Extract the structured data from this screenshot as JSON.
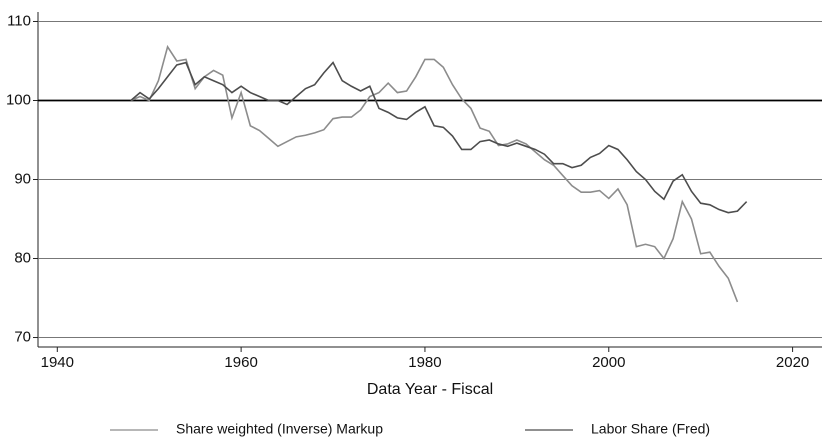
{
  "chart_data": {
    "type": "line",
    "x_label": "Data Year - Fiscal",
    "x": [
      1948,
      1949,
      1950,
      1951,
      1952,
      1953,
      1954,
      1955,
      1956,
      1957,
      1958,
      1959,
      1960,
      1961,
      1962,
      1963,
      1964,
      1965,
      1966,
      1967,
      1968,
      1969,
      1970,
      1971,
      1972,
      1973,
      1974,
      1975,
      1976,
      1977,
      1978,
      1979,
      1980,
      1981,
      1982,
      1983,
      1984,
      1985,
      1986,
      1987,
      1988,
      1989,
      1990,
      1991,
      1992,
      1993,
      1994,
      1995,
      1996,
      1997,
      1998,
      1999,
      2000,
      2001,
      2002,
      2003,
      2004,
      2005,
      2006,
      2007,
      2008,
      2009,
      2010,
      2011,
      2012,
      2013,
      2014,
      2015
    ],
    "series": [
      {
        "name": "Share weighted (Inverse) Markup",
        "color": "#8c8c8c",
        "values": [
          100,
          100.5,
          100,
          102.5,
          106.8,
          105,
          105.2,
          101.5,
          103,
          103.8,
          103.2,
          97.8,
          101,
          96.8,
          96.2,
          95.2,
          94.2,
          94.8,
          95.4,
          95.6,
          95.9,
          96.3,
          97.7,
          97.9,
          97.9,
          98.8,
          100.5,
          101,
          102.2,
          101,
          101.2,
          103,
          105.2,
          105.2,
          104.2,
          102,
          100.2,
          99,
          96.5,
          96.1,
          94.3,
          94.5,
          95,
          94.5,
          93.5,
          92.5,
          91.8,
          90.5,
          89.2,
          88.4,
          88.4,
          88.6,
          87.6,
          88.8,
          86.8,
          81.5,
          81.8,
          81.5,
          80,
          82.5,
          87.2,
          85,
          80.6,
          80.8,
          79,
          77.5,
          74.5,
          null
        ]
      },
      {
        "name": "Labor Share (Fred)",
        "color": "#4d4d4d",
        "values": [
          100,
          101,
          100.2,
          101.5,
          103,
          104.5,
          104.8,
          102,
          103,
          102.5,
          102,
          101,
          101.8,
          101,
          100.5,
          100,
          100,
          99.5,
          100.5,
          101.5,
          102,
          103.5,
          104.8,
          102.5,
          101.8,
          101.2,
          101.8,
          99,
          98.5,
          97.8,
          97.6,
          98.5,
          99.2,
          96.8,
          96.6,
          95.5,
          93.8,
          93.8,
          94.8,
          95,
          94.5,
          94.2,
          94.6,
          94.2,
          93.8,
          93.2,
          92,
          92,
          91.5,
          91.8,
          92.8,
          93.3,
          94.3,
          93.8,
          92.5,
          91,
          90,
          88.5,
          87.5,
          89.8,
          90.6,
          88.5,
          87,
          86.8,
          86.2,
          85.8,
          86,
          87.2
        ]
      }
    ],
    "xlim": [
      1937.9,
      2023.2
    ],
    "xticks": [
      1940,
      1960,
      1980,
      2000,
      2020
    ],
    "ylim": [
      68.8,
      111.2
    ],
    "yticks": [
      70,
      80,
      90,
      100,
      110
    ],
    "grid": true,
    "reference_line": 100,
    "legend": "bottom"
  }
}
